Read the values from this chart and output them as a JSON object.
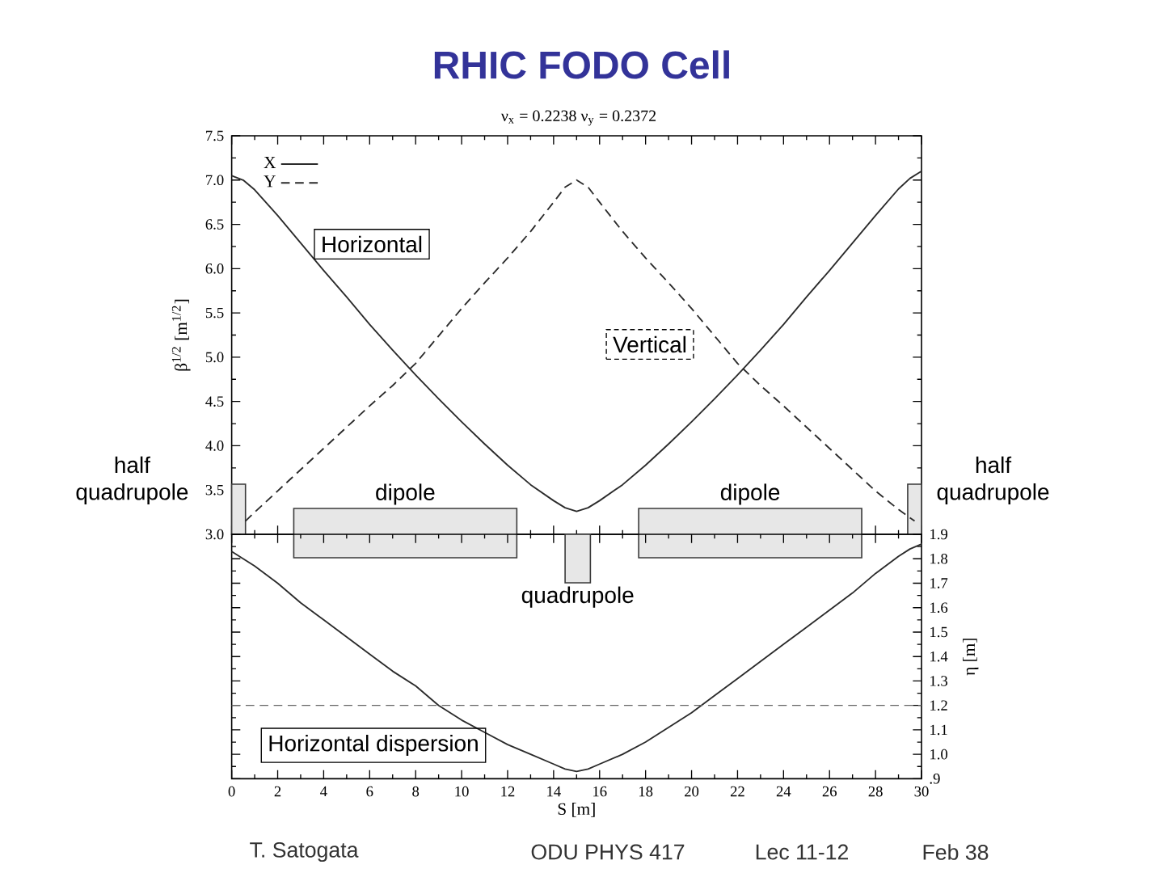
{
  "chart_data": [
    {
      "type": "line",
      "title": "RHIC FODO Cell",
      "subtitle": "ν$_{x}$ =   0.2238   ν$_{y}$ =   0.2372",
      "ylabel": "β$^{1/2}$ [m$^{1/2}$]",
      "xlim": [
        0,
        30
      ],
      "xticks": [
        0,
        2,
        4,
        6,
        8,
        10,
        12,
        14,
        16,
        18,
        20,
        22,
        24,
        26,
        28,
        30
      ],
      "ylim": [
        3,
        7.5
      ],
      "yticks": [
        {
          "value": 3,
          "label": "3.0"
        },
        3.5,
        {
          "value": 4,
          "label": "4.0"
        },
        4.5,
        {
          "value": 5,
          "label": "5.0"
        },
        5.5,
        {
          "value": 6,
          "label": "6.0"
        },
        6.5,
        {
          "value": 7,
          "label": "7.0"
        },
        7.5
      ],
      "tick_labels": "y",
      "legend": "top left",
      "series": [
        {
          "name": "X",
          "color": "#2b2b2b",
          "line_style": "solid",
          "x": [
            0,
            0.5,
            1,
            2,
            3,
            4,
            5,
            6,
            7,
            8,
            9,
            10,
            11,
            12,
            13,
            14,
            14.5,
            15,
            15.5,
            16,
            17,
            18,
            19,
            20,
            21,
            22,
            23,
            24,
            25,
            26,
            27,
            28,
            29,
            29.5,
            30
          ],
          "values": [
            7.05,
            7.0,
            6.89,
            6.6,
            6.29,
            5.98,
            5.68,
            5.37,
            5.08,
            4.8,
            4.53,
            4.27,
            4.02,
            3.78,
            3.56,
            3.38,
            3.3,
            3.26,
            3.3,
            3.38,
            3.56,
            3.78,
            4.02,
            4.27,
            4.53,
            4.8,
            5.08,
            5.37,
            5.68,
            5.98,
            6.29,
            6.6,
            6.9,
            7.02,
            7.1
          ]
        },
        {
          "name": "Y",
          "color": "#2b2b2b",
          "line_style": "dashed",
          "x": [
            0.6,
            1,
            2,
            3,
            4,
            5,
            6,
            7,
            8,
            9,
            10,
            11,
            12,
            13,
            14,
            14.5,
            15,
            15.5,
            16,
            17,
            18,
            19,
            20,
            21,
            22,
            23,
            24,
            25,
            26,
            27,
            28,
            29,
            29.7
          ],
          "values": [
            3.15,
            3.25,
            3.49,
            3.73,
            3.97,
            4.21,
            4.45,
            4.68,
            4.93,
            5.24,
            5.55,
            5.84,
            6.12,
            6.42,
            6.75,
            6.92,
            7.0,
            6.92,
            6.75,
            6.42,
            6.12,
            5.84,
            5.55,
            5.24,
            4.93,
            4.68,
            4.45,
            4.21,
            3.97,
            3.73,
            3.49,
            3.28,
            3.15
          ]
        }
      ],
      "bands": [
        {
          "axis": "x",
          "from": 0,
          "to": 0.6,
          "label": "half quadrupole",
          "color": "#3a3a3a"
        },
        {
          "axis": "x",
          "from": 2.7,
          "to": 12.4,
          "label": "dipole",
          "color": "#3a3a3a"
        },
        {
          "axis": "x",
          "from": 17.7,
          "to": 27.4,
          "label": "dipole",
          "color": "#3a3a3a"
        },
        {
          "axis": "x",
          "from": 29.4,
          "to": 30,
          "label": "half quadrupole",
          "color": "#3a3a3a"
        }
      ],
      "annotations": [
        "Horizontal",
        "Vertical"
      ]
    },
    {
      "type": "line",
      "xlabel": "S [m]",
      "y2label": "η [m]",
      "xlim": [
        0,
        30
      ],
      "xticks": [
        0,
        2,
        4,
        6,
        8,
        10,
        12,
        14,
        16,
        18,
        20,
        22,
        24,
        26,
        28,
        30
      ],
      "y2lim": [
        0.9,
        1.9
      ],
      "y2ticks": [
        {
          "value": 0.9,
          "label": ".9"
        },
        {
          "value": 1,
          "label": "1.0"
        },
        1.1,
        1.2,
        1.3,
        1.4,
        1.5,
        1.6,
        1.7,
        1.8,
        1.9
      ],
      "series": [
        {
          "color": "#2b2b2b",
          "axis": "y2",
          "x": [
            0,
            1,
            2,
            3,
            4,
            5,
            6,
            7,
            8,
            9,
            10,
            11,
            12,
            13,
            14,
            14.5,
            15,
            15.5,
            16,
            17,
            18,
            19,
            20,
            21,
            22,
            23,
            24,
            25,
            26,
            27,
            28,
            29,
            29.5,
            30
          ],
          "values": [
            1.83,
            1.77,
            1.7,
            1.62,
            1.55,
            1.48,
            1.41,
            1.34,
            1.28,
            1.2,
            1.14,
            1.09,
            1.04,
            1.0,
            0.96,
            0.94,
            0.93,
            0.94,
            0.96,
            1.0,
            1.05,
            1.11,
            1.17,
            1.24,
            1.31,
            1.38,
            1.45,
            1.52,
            1.59,
            1.66,
            1.74,
            1.81,
            1.84,
            1.86
          ]
        }
      ],
      "bands": [
        {
          "axis": "x",
          "from": 14.5,
          "to": 15.6,
          "label": "quadrupole",
          "color": "#3a3a3a"
        }
      ],
      "ref_lines": [
        {
          "axis": "y2",
          "value": 1.2,
          "color": "#666666",
          "line_style": "dashed"
        }
      ],
      "annotations": [
        "Horizontal dispersion",
        "T. Satogata",
        "ODU PHYS 417",
        "Lec 11-12",
        "Feb 38"
      ]
    }
  ]
}
